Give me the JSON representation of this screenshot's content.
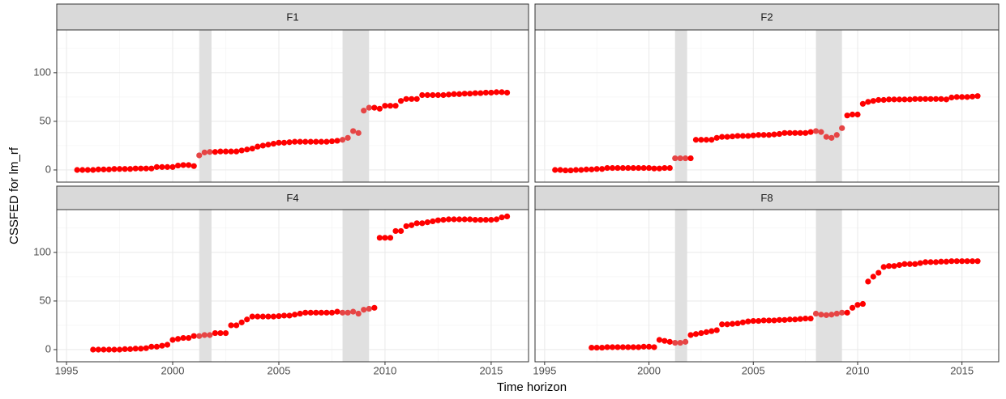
{
  "chart_data": {
    "type": "scatter",
    "x_label": "Time horizon",
    "y_label": "CSSFED for lm_rf",
    "xlim": [
      1994.54,
      2016.76
    ],
    "ylim": [
      -12.5,
      144
    ],
    "xticks": [
      1995,
      2000,
      2005,
      2010,
      2015
    ],
    "yticks": [
      0,
      50,
      100
    ],
    "grid": true,
    "color": "#ff0000",
    "shaded_color": "#e64545",
    "shade_fill": "#e0e0e0",
    "shaded_ranges": [
      [
        2001.25,
        2001.83
      ],
      [
        2008.0,
        2009.25
      ]
    ],
    "facets": [
      {
        "title": "F1",
        "x": [
          1995.5,
          1995.75,
          1996,
          1996.25,
          1996.5,
          1996.75,
          1997,
          1997.25,
          1997.5,
          1997.75,
          1998,
          1998.25,
          1998.5,
          1998.75,
          1999,
          1999.25,
          1999.5,
          1999.75,
          2000,
          2000.25,
          2000.5,
          2000.75,
          2001,
          2001.25,
          2001.5,
          2001.75,
          2002,
          2002.25,
          2002.5,
          2002.75,
          2003,
          2003.25,
          2003.5,
          2003.75,
          2004,
          2004.25,
          2004.5,
          2004.75,
          2005,
          2005.25,
          2005.5,
          2005.75,
          2006,
          2006.25,
          2006.5,
          2006.75,
          2007,
          2007.25,
          2007.5,
          2007.75,
          2008,
          2008.25,
          2008.5,
          2008.75,
          2009,
          2009.25,
          2009.5,
          2009.75,
          2010,
          2010.25,
          2010.5,
          2010.75,
          2011,
          2011.25,
          2011.5,
          2011.75,
          2012,
          2012.25,
          2012.5,
          2012.75,
          2013,
          2013.25,
          2013.5,
          2013.75,
          2014,
          2014.25,
          2014.5,
          2014.75,
          2015,
          2015.25,
          2015.5,
          2015.75
        ],
        "values": [
          0,
          0,
          0,
          0,
          0.5,
          0.5,
          0.5,
          1,
          1,
          1,
          1,
          1.5,
          1.5,
          1.5,
          1.5,
          3,
          3,
          3,
          3,
          4.5,
          5,
          5,
          4,
          15,
          18,
          18.5,
          18.5,
          19,
          19,
          19,
          19,
          20,
          21,
          22,
          24,
          25,
          26,
          27,
          28,
          28,
          28.5,
          29,
          29,
          29,
          29,
          29,
          29,
          29,
          29.5,
          30,
          31,
          33,
          40,
          38,
          61,
          64,
          64,
          63,
          66,
          66,
          66,
          71,
          73,
          73,
          73,
          77,
          77,
          77,
          77,
          77,
          77.5,
          78,
          78,
          78.5,
          78.5,
          79,
          79,
          79.5,
          79.5,
          80,
          80,
          79.5
        ]
      },
      {
        "title": "F2",
        "x": [
          1995.5,
          1995.75,
          1996,
          1996.25,
          1996.5,
          1996.75,
          1997,
          1997.25,
          1997.5,
          1997.75,
          1998,
          1998.25,
          1998.5,
          1998.75,
          1999,
          1999.25,
          1999.5,
          1999.75,
          2000,
          2000.25,
          2000.5,
          2000.75,
          2001,
          2001.25,
          2001.5,
          2001.75,
          2002,
          2002.25,
          2002.5,
          2002.75,
          2003,
          2003.25,
          2003.5,
          2003.75,
          2004,
          2004.25,
          2004.5,
          2004.75,
          2005,
          2005.25,
          2005.5,
          2005.75,
          2006,
          2006.25,
          2006.5,
          2006.75,
          2007,
          2007.25,
          2007.5,
          2007.75,
          2008,
          2008.25,
          2008.5,
          2008.75,
          2009,
          2009.25,
          2009.5,
          2009.75,
          2010,
          2010.25,
          2010.5,
          2010.75,
          2011,
          2011.25,
          2011.5,
          2011.75,
          2012,
          2012.25,
          2012.5,
          2012.75,
          2013,
          2013.25,
          2013.5,
          2013.75,
          2014,
          2014.25,
          2014.5,
          2014.75,
          2015,
          2015.25,
          2015.5,
          2015.75
        ],
        "values": [
          0,
          0,
          -0.5,
          -0.5,
          0,
          0,
          0.5,
          0.5,
          1,
          1,
          2,
          2,
          2,
          2,
          2,
          2,
          2,
          2,
          2,
          1.5,
          1.5,
          2,
          2,
          12,
          12,
          12,
          12,
          31,
          31,
          31,
          31,
          33,
          34,
          34,
          34.5,
          35,
          35,
          35,
          35.5,
          36,
          36,
          36,
          36.5,
          37,
          38,
          38,
          38,
          38,
          38,
          39,
          40,
          39,
          34,
          33,
          36,
          43,
          56,
          57,
          57,
          68,
          70,
          71,
          72,
          72,
          72.5,
          72.5,
          72.5,
          72.5,
          72.5,
          73,
          73,
          73,
          73,
          73,
          73,
          72.5,
          74.5,
          75,
          75,
          75,
          75.5,
          76
        ]
      },
      {
        "title": "F4",
        "x": [
          1996.25,
          1996.5,
          1996.75,
          1997,
          1997.25,
          1997.5,
          1997.75,
          1998,
          1998.25,
          1998.5,
          1998.75,
          1999,
          1999.25,
          1999.5,
          1999.75,
          2000,
          2000.25,
          2000.5,
          2000.75,
          2001,
          2001.25,
          2001.5,
          2001.75,
          2002,
          2002.25,
          2002.5,
          2002.75,
          2003,
          2003.25,
          2003.5,
          2003.75,
          2004,
          2004.25,
          2004.5,
          2004.75,
          2005,
          2005.25,
          2005.5,
          2005.75,
          2006,
          2006.25,
          2006.5,
          2006.75,
          2007,
          2007.25,
          2007.5,
          2007.75,
          2008,
          2008.25,
          2008.5,
          2008.75,
          2009,
          2009.25,
          2009.5,
          2009.75,
          2010,
          2010.25,
          2010.5,
          2010.75,
          2011,
          2011.25,
          2011.5,
          2011.75,
          2012,
          2012.25,
          2012.5,
          2012.75,
          2013,
          2013.25,
          2013.5,
          2013.75,
          2014,
          2014.25,
          2014.5,
          2014.75,
          2015,
          2015.25,
          2015.5,
          2015.75
        ],
        "values": [
          0,
          0,
          0,
          0,
          0,
          0,
          0.5,
          0.5,
          1,
          1,
          1.5,
          3,
          3,
          4,
          5,
          10,
          11,
          12,
          12,
          14,
          14,
          15,
          15,
          17,
          17,
          17,
          25,
          25,
          28,
          31,
          34,
          34,
          34,
          34,
          34,
          34.5,
          35,
          35,
          36,
          37,
          38,
          38,
          38,
          38,
          38,
          38,
          39,
          38,
          38,
          39,
          37,
          41,
          42,
          43,
          115,
          115,
          115,
          122,
          122,
          127,
          128,
          130,
          130,
          131,
          132,
          133,
          133.5,
          134,
          134,
          134,
          134,
          134,
          133.5,
          133.5,
          133.5,
          133.5,
          134,
          136,
          137
        ]
      },
      {
        "title": "F8",
        "x": [
          1997.25,
          1997.5,
          1997.75,
          1998,
          1998.25,
          1998.5,
          1998.75,
          1999,
          1999.25,
          1999.5,
          1999.75,
          2000,
          2000.25,
          2000.5,
          2000.75,
          2001,
          2001.25,
          2001.5,
          2001.75,
          2002,
          2002.25,
          2002.5,
          2002.75,
          2003,
          2003.25,
          2003.5,
          2003.75,
          2004,
          2004.25,
          2004.5,
          2004.75,
          2005,
          2005.25,
          2005.5,
          2005.75,
          2006,
          2006.25,
          2006.5,
          2006.75,
          2007,
          2007.25,
          2007.5,
          2007.75,
          2008,
          2008.25,
          2008.5,
          2008.75,
          2009,
          2009.25,
          2009.5,
          2009.75,
          2010,
          2010.25,
          2010.5,
          2010.75,
          2011,
          2011.25,
          2011.5,
          2011.75,
          2012,
          2012.25,
          2012.5,
          2012.75,
          2013,
          2013.25,
          2013.5,
          2013.75,
          2014,
          2014.25,
          2014.5,
          2014.75,
          2015,
          2015.25,
          2015.5,
          2015.75
        ],
        "values": [
          2,
          2,
          2,
          2.5,
          2.5,
          2.5,
          2.5,
          2.5,
          2.5,
          2.5,
          3,
          3,
          2.5,
          10,
          9,
          8,
          7,
          7,
          8,
          15,
          16,
          17,
          18,
          19,
          20,
          26,
          26,
          26.5,
          27,
          28,
          29,
          29.5,
          29.5,
          30,
          30,
          30,
          30.5,
          30.5,
          31,
          31,
          31.5,
          32,
          32,
          37,
          36,
          35.5,
          36,
          37,
          38,
          38,
          43,
          46,
          47,
          70,
          75,
          79,
          85,
          86,
          86,
          87,
          88,
          88,
          88,
          89,
          90,
          90,
          90,
          90.5,
          90.5,
          91,
          91,
          91,
          91,
          91,
          91
        ]
      }
    ]
  }
}
